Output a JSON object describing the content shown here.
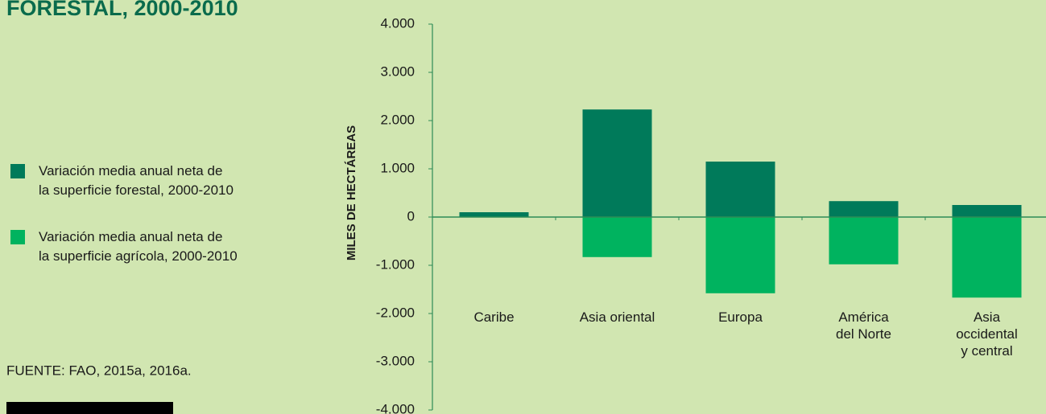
{
  "chart_data": {
    "type": "bar",
    "title": "FORESTAL, 2000-2010",
    "source": "FUENTE: FAO, 2015a, 2016a.",
    "ylabel": "MILES DE HECTÁREAS",
    "categories": [
      "Caribe",
      "Asia oriental",
      "Europa",
      "América\ndel Norte",
      "Asia\noccidental\ny central"
    ],
    "series": [
      {
        "name": "Variación media anual neta de\nla superficie forestal, 2000-2010",
        "color": "#007a5a",
        "values": [
          100,
          2230,
          1150,
          330,
          250
        ]
      },
      {
        "name": "Variación media anual neta de\nla superficie agrícola, 2000-2010",
        "color": "#00b35f",
        "values": [
          0,
          -830,
          -1580,
          -980,
          -1670
        ]
      }
    ],
    "ylim": [
      -4000,
      4000
    ],
    "yticks": [
      {
        "value": 4000,
        "label": "4.000"
      },
      {
        "value": 3000,
        "label": "3.000"
      },
      {
        "value": 2000,
        "label": "2.000"
      },
      {
        "value": 1000,
        "label": "1.000"
      },
      0,
      {
        "value": -1000,
        "label": "-1.000"
      },
      {
        "value": -2000,
        "label": "-2.000"
      },
      {
        "value": -3000,
        "label": "-3.000"
      },
      {
        "value": -4000,
        "label": "-4.000"
      }
    ]
  }
}
